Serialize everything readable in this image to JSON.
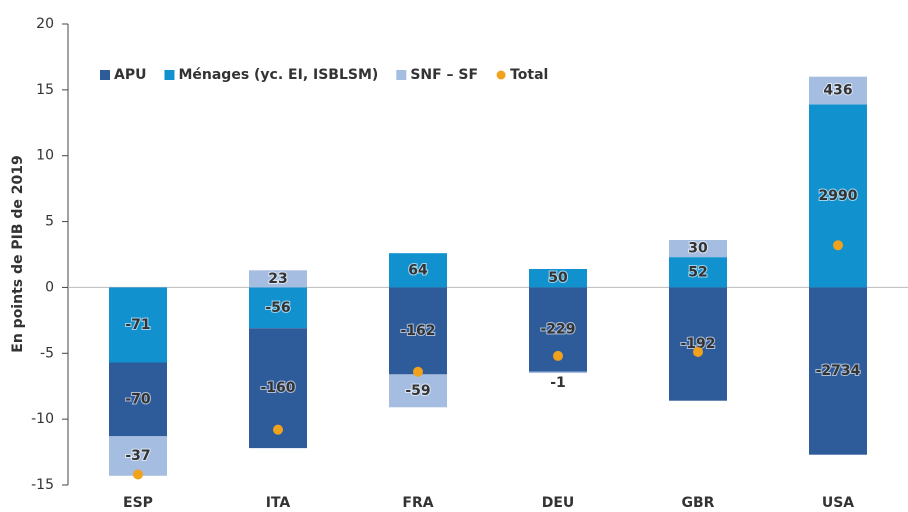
{
  "chart_data": {
    "type": "stacked-bar",
    "y_label": "En points de PIB de 2019",
    "categories": [
      "ESP",
      "ITA",
      "FRA",
      "DEU",
      "GBR",
      "USA"
    ],
    "series": [
      {
        "name": "APU",
        "color": "#2e5b9a",
        "values": [
          -5.6,
          -9.1,
          -6.6,
          -6.4,
          -8.6,
          -12.7
        ],
        "amounts": [
          -70,
          -160,
          -162,
          -229,
          -192,
          -2734
        ]
      },
      {
        "name": "Ménages (yc. EI, ISBLSM)",
        "color": "#1192cf",
        "values": [
          -5.7,
          -3.1,
          2.6,
          1.4,
          2.3,
          13.9
        ],
        "amounts": [
          -71,
          -56,
          64,
          50,
          52,
          2990
        ]
      },
      {
        "name": "SNF – SF",
        "color": "#a5bde0",
        "values": [
          -3.0,
          1.3,
          -2.5,
          -0.1,
          1.3,
          2.1
        ],
        "amounts": [
          -37,
          23,
          -59,
          -1,
          30,
          436
        ]
      },
      {
        "name": "Total",
        "color": "#f0a21c",
        "kind": "dot",
        "values": [
          -14.2,
          -10.8,
          -6.4,
          -5.2,
          -4.9,
          3.2
        ]
      }
    ],
    "stack_order": [
      1,
      0,
      2
    ],
    "ylim": [
      -15,
      20
    ],
    "yticks": [
      -15,
      -10,
      -5,
      0,
      5,
      10,
      15,
      20
    ]
  }
}
